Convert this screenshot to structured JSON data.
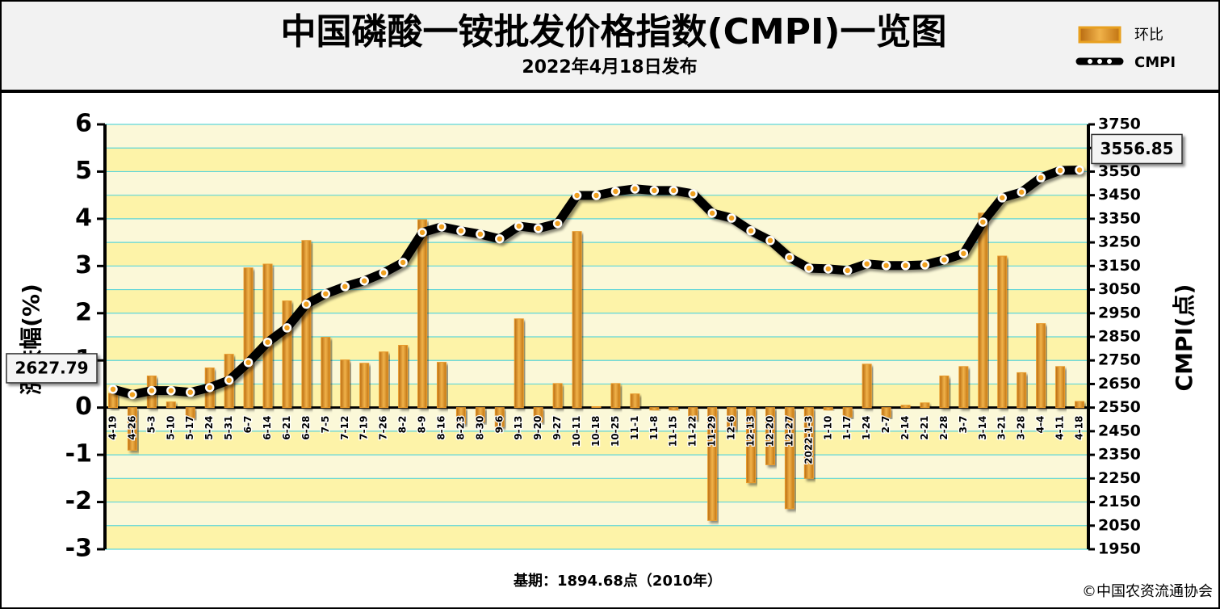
{
  "chart_data": {
    "type": "bar-line",
    "title": "中国磷酸一铵批发价格指数(CMPI)一览图",
    "subtitle": "2022年4月18日发布",
    "footnote": "基期：1894.68点（2010年）",
    "source": "©中国农资流通协会",
    "ylabel": "涨跌幅(%)",
    "y2label": "CMPI(点)",
    "categories": [
      "4-19",
      "4-26",
      "5-3",
      "5-10",
      "5-17",
      "5-24",
      "5-31",
      "6-7",
      "6-14",
      "6-21",
      "6-28",
      "7-5",
      "7-12",
      "7-19",
      "7-26",
      "8-2",
      "8-9",
      "8-16",
      "8-23",
      "8-30",
      "9-6",
      "9-13",
      "9-20",
      "9-27",
      "10-11",
      "10-18",
      "10-25",
      "11-1",
      "11-8",
      "11-15",
      "11-22",
      "11-29",
      "12-6",
      "12-13",
      "12-20",
      "12-27",
      "2022-1-3",
      "1-10",
      "1-17",
      "1-24",
      "2-7",
      "2-14",
      "2-21",
      "2-28",
      "3-7",
      "3-14",
      "3-21",
      "3-28",
      "4-4",
      "4-11",
      "4-18"
    ],
    "series": [
      {
        "name": "环比",
        "color": "#e89a2c",
        "axis": "y",
        "values": [
          0.3,
          -0.9,
          0.67,
          0.12,
          -0.22,
          0.84,
          1.13,
          2.96,
          3.04,
          2.26,
          3.54,
          1.49,
          1.01,
          0.94,
          1.18,
          1.32,
          3.98,
          0.96,
          -0.34,
          -0.3,
          -0.4,
          1.88,
          -0.3,
          0.51,
          3.73,
          0.02,
          0.51,
          0.29,
          -0.05,
          -0.05,
          -0.25,
          -2.39,
          -0.45,
          -1.59,
          -1.21,
          -2.14,
          -1.5,
          -0.05,
          -0.2,
          0.92,
          -0.2,
          0.05,
          0.1,
          0.67,
          0.87,
          4.12,
          3.21,
          0.74,
          1.78,
          0.87,
          0.13
        ]
      },
      {
        "name": "CMPI",
        "color": "#000000",
        "axis": "y2",
        "values": [
          2627.79,
          2605,
          2622,
          2622,
          2615,
          2635,
          2666,
          2741,
          2827,
          2888,
          2988,
          3032,
          3063,
          3087,
          3121,
          3165,
          3292,
          3316,
          3299,
          3285,
          3265,
          3319,
          3309,
          3330,
          3449,
          3449,
          3466,
          3477,
          3470,
          3470,
          3456,
          3374,
          3353,
          3299,
          3258,
          3186,
          3141,
          3138,
          3131,
          3159,
          3152,
          3152,
          3155,
          3176,
          3203,
          3336,
          3439,
          3463,
          3524,
          3555,
          3556.85
        ],
        "value_labels": [
          "2627.79",
          null,
          null,
          null,
          null,
          null,
          null,
          null,
          null,
          null,
          null,
          null,
          null,
          null,
          null,
          null,
          null,
          null,
          null,
          null,
          null,
          null,
          null,
          null,
          null,
          null,
          null,
          null,
          null,
          null,
          null,
          null,
          null,
          null,
          null,
          null,
          null,
          null,
          null,
          null,
          null,
          null,
          null,
          null,
          null,
          null,
          null,
          null,
          null,
          null,
          "3556.85"
        ]
      }
    ],
    "ylim": [
      -3,
      6
    ],
    "yticks": [
      -3,
      -2,
      -1,
      0,
      1,
      2,
      3,
      4,
      5,
      6
    ],
    "y2lim": [
      1950,
      3750
    ],
    "y2ticks": [
      1950,
      2050,
      2150,
      2250,
      2350,
      2450,
      2550,
      2650,
      2750,
      2850,
      2950,
      3050,
      3150,
      3250,
      3350,
      3450,
      3550,
      3650,
      3750
    ],
    "grid": true
  }
}
